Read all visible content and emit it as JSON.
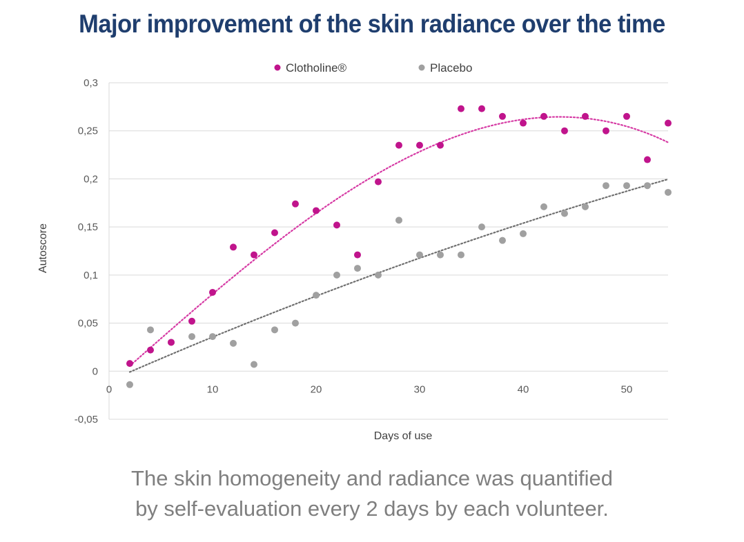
{
  "title": "Major improvement of the skin radiance over the time",
  "caption": {
    "line1": "The skin homogeneity and radiance was quantified",
    "line2": "by self-evaluation every 2 days by each volunteer."
  },
  "colors": {
    "title": "#1f3e6e",
    "clotholine": "#c0148c",
    "placebo": "#a0a0a0",
    "gridline": "#d9d9d9",
    "caption": "#7f7f7f"
  },
  "chart_data": {
    "type": "scatter",
    "xlabel": "Days of use",
    "ylabel": "Autoscore",
    "xlim": [
      0,
      54
    ],
    "ylim": [
      -0.05,
      0.3
    ],
    "x_ticks": [
      0,
      10,
      20,
      30,
      40,
      50
    ],
    "x_tick_labels": [
      "0",
      "10",
      "20",
      "30",
      "40",
      "50"
    ],
    "y_ticks": [
      -0.05,
      0,
      0.05,
      0.1,
      0.15,
      0.2,
      0.25,
      0.3
    ],
    "y_tick_labels": [
      "-0,05",
      "0",
      "0,05",
      "0,1",
      "0,15",
      "0,2",
      "0,25",
      "0,3"
    ],
    "grid": "horizontal",
    "legend_position": "top-center",
    "trendline": "polynomial, dotted",
    "series": [
      {
        "name": "Clotholine®",
        "color": "#c0148c",
        "x": [
          2,
          4,
          6,
          8,
          10,
          12,
          14,
          16,
          18,
          20,
          22,
          24,
          26,
          28,
          30,
          32,
          34,
          36,
          38,
          40,
          42,
          44,
          46,
          48,
          50,
          52,
          54
        ],
        "y": [
          0.008,
          0.022,
          0.03,
          0.052,
          0.082,
          0.129,
          0.121,
          0.144,
          0.174,
          0.167,
          0.152,
          0.121,
          0.197,
          0.235,
          0.235,
          0.235,
          0.273,
          0.273,
          0.265,
          0.258,
          0.265,
          0.25,
          0.265,
          0.25,
          0.265,
          0.22,
          0.258
        ]
      },
      {
        "name": "Placebo",
        "color": "#a0a0a0",
        "x": [
          2,
          4,
          6,
          8,
          10,
          12,
          14,
          16,
          18,
          20,
          22,
          24,
          26,
          28,
          30,
          32,
          34,
          36,
          38,
          40,
          42,
          44,
          46,
          48,
          50,
          52,
          54
        ],
        "y": [
          -0.014,
          0.043,
          0.03,
          0.036,
          0.036,
          0.029,
          0.007,
          0.043,
          0.05,
          0.079,
          0.1,
          0.107,
          0.1,
          0.157,
          0.121,
          0.121,
          0.121,
          0.15,
          0.136,
          0.143,
          0.171,
          0.164,
          0.171,
          0.193,
          0.193,
          0.193,
          0.186
        ]
      }
    ]
  }
}
